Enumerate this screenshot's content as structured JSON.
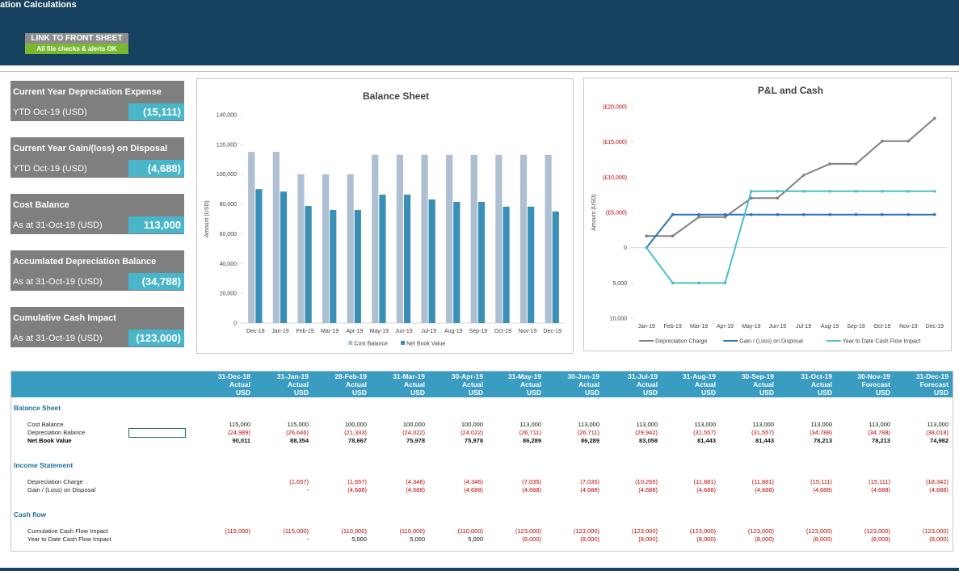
{
  "header": {
    "title": "ation Calculations",
    "button": "LINK TO FRONT SHEET",
    "status": "All file checks & alerts OK"
  },
  "cards": [
    {
      "title": "Current Year Depreciation Expense",
      "label": "YTD Oct-19 (USD)",
      "value": "(15,111)"
    },
    {
      "title": "Current Year Gain/(loss) on Disposal",
      "label": "YTD Oct-19 (USD)",
      "value": "(4,688)"
    },
    {
      "title": "Cost Balance",
      "label": "As at 31-Oct-19 (USD)",
      "value": "113,000"
    },
    {
      "title": "Accumlated Depreciation Balance",
      "label": "As at 31-Oct-19 (USD)",
      "value": "(34,788)"
    },
    {
      "title": "Cumulative Cash Impact",
      "label": "As at 31-Oct-19 (USD)",
      "value": "(123,000)"
    }
  ],
  "chart_data": [
    {
      "type": "bar",
      "title": "Balance Sheet",
      "y_label": "Amount (USD)",
      "categories": [
        "Dec-18",
        "Jan-19",
        "Feb-19",
        "Mar-19",
        "Apr-19",
        "May-19",
        "Jun-19",
        "Jul-19",
        "Aug-19",
        "Sep-19",
        "Oct-19",
        "Nov-19",
        "Dec-19"
      ],
      "series": [
        {
          "name": "Cost Balance",
          "color": "#adbfd1",
          "values": [
            115000,
            115000,
            100000,
            100000,
            100000,
            113000,
            113000,
            113000,
            113000,
            113000,
            113000,
            113000,
            113000
          ]
        },
        {
          "name": "Net Book Value",
          "color": "#3a8fb7",
          "values": [
            90011,
            88354,
            78667,
            75978,
            75978,
            86289,
            86289,
            83058,
            81443,
            81443,
            78213,
            78213,
            74982
          ]
        }
      ],
      "ylim": [
        0,
        140000
      ],
      "yticks": [
        0,
        {
          "value": 20000,
          "label": "20,000"
        },
        {
          "value": 40000,
          "label": "40,000"
        },
        {
          "value": 60000,
          "label": "60,000"
        },
        {
          "value": 80000,
          "label": "80,000"
        },
        {
          "value": 100000,
          "label": "100,000"
        },
        {
          "value": 120000,
          "label": "120,000"
        },
        {
          "value": 140000,
          "label": "140,000"
        }
      ],
      "grid": false,
      "legend": "bottom"
    },
    {
      "type": "line",
      "title": "P&L and Cash",
      "y_label": "Amount (USD)",
      "categories": [
        "Jan-19",
        "Feb-19",
        "Mar-19",
        "Apr-19",
        "May-19",
        "Jun-19",
        "Jul-19",
        "Aug-19",
        "Sep-19",
        "Oct-19",
        "Nov-19",
        "Dec-19"
      ],
      "series": [
        {
          "name": "Depreciation Charge",
          "color": "#808080",
          "values": [
            -1657,
            -1657,
            -4346,
            -4346,
            -7035,
            -7035,
            -10265,
            -11881,
            -11881,
            -15111,
            -15111,
            -18342
          ]
        },
        {
          "name": "Gain / (Loss) on Disposal",
          "color": "#2e75b6",
          "values": [
            0,
            -4688,
            -4688,
            -4688,
            -4688,
            -4688,
            -4688,
            -4688,
            -4688,
            -4688,
            -4688,
            -4688
          ]
        },
        {
          "name": "Year to Date Cash Flow Impact",
          "color": "#4bbfca",
          "values": [
            0,
            5000,
            5000,
            5000,
            -8000,
            -8000,
            -8000,
            -8000,
            -8000,
            -8000,
            -8000,
            -8000
          ]
        }
      ],
      "ylim": [
        10000,
        -20000
      ],
      "yticks": [
        {
          "value": 10000,
          "label": "10,000"
        },
        {
          "value": 5000,
          "label": "5,000"
        },
        0,
        {
          "value": -5000,
          "label": "(£5,000)"
        },
        {
          "value": -10000,
          "label": "(£10,000)"
        },
        {
          "value": -15000,
          "label": "(£15,000)"
        },
        {
          "value": -20000,
          "label": "(£20,000)"
        }
      ],
      "grid": false,
      "legend": "bottom"
    }
  ],
  "table": {
    "columns": [
      {
        "date": "31-Dec-18",
        "basis": "Actual",
        "currency": "USD"
      },
      {
        "date": "31-Jan-19",
        "basis": "Actual",
        "currency": "USD"
      },
      {
        "date": "28-Feb-19",
        "basis": "Actual",
        "currency": "USD"
      },
      {
        "date": "31-Mar-19",
        "basis": "Actual",
        "currency": "USD"
      },
      {
        "date": "30-Apr-19",
        "basis": "Actual",
        "currency": "USD"
      },
      {
        "date": "31-May-19",
        "basis": "Actual",
        "currency": "USD"
      },
      {
        "date": "30-Jun-19",
        "basis": "Actual",
        "currency": "USD"
      },
      {
        "date": "31-Jul-19",
        "basis": "Actual",
        "currency": "USD"
      },
      {
        "date": "31-Aug-19",
        "basis": "Actual",
        "currency": "USD"
      },
      {
        "date": "30-Sep-19",
        "basis": "Actual",
        "currency": "USD"
      },
      {
        "date": "31-Oct-19",
        "basis": "Actual",
        "currency": "USD"
      },
      {
        "date": "30-Nov-19",
        "basis": "Forecast",
        "currency": "USD"
      },
      {
        "date": "31-Dec-19",
        "basis": "Forecast",
        "currency": "USD"
      }
    ],
    "sections": [
      {
        "title": "Balance Sheet",
        "rows": [
          {
            "label": "Cost Balance",
            "values": [
              "115,000",
              "115,000",
              "100,000",
              "100,000",
              "100,000",
              "113,000",
              "113,000",
              "113,000",
              "113,000",
              "113,000",
              "113,000",
              "113,000",
              "113,000"
            ]
          },
          {
            "label": "Depreciation Balance",
            "values": [
              "(24,989)",
              "(26,646)",
              "(21,333)",
              "(24,022)",
              "(24,022)",
              "(26,711)",
              "(26,711)",
              "(29,942)",
              "(31,557)",
              "(31,557)",
              "(34,788)",
              "(34,788)",
              "(38,018)"
            ]
          },
          {
            "label": "Net Book Value",
            "bold": true,
            "values": [
              "90,011",
              "88,354",
              "78,667",
              "75,978",
              "75,978",
              "86,289",
              "86,289",
              "83,058",
              "81,443",
              "81,443",
              "78,213",
              "78,213",
              "74,982"
            ]
          }
        ]
      },
      {
        "title": "Income Statement",
        "rows": [
          {
            "label": "Depreciation Charge",
            "values": [
              null,
              "(1,657)",
              "(1,657)",
              "(4,346)",
              "(4,346)",
              "(7,035)",
              "(7,035)",
              "(10,265)",
              "(11,881)",
              "(11,881)",
              "(15,111)",
              "(15,111)",
              "(18,342)"
            ]
          },
          {
            "label": "Gain / (Loss) on Disposal",
            "values": [
              null,
              "-",
              "(4,688)",
              "(4,688)",
              "(4,688)",
              "(4,688)",
              "(4,688)",
              "(4,688)",
              "(4,688)",
              "(4,688)",
              "(4,688)",
              "(4,688)",
              "(4,688)"
            ]
          }
        ]
      },
      {
        "title": "Cash flow",
        "rows": [
          {
            "label": "Cumulative Cash Flow Impact",
            "values": [
              "(115,000)",
              "(115,000)",
              "(110,000)",
              "(110,000)",
              "(110,000)",
              "(123,000)",
              "(123,000)",
              "(123,000)",
              "(123,000)",
              "(123,000)",
              "(123,000)",
              "(123,000)",
              "(123,000)"
            ]
          },
          {
            "label": "Year to Date Cash Flow Impact",
            "values": [
              null,
              "-",
              "5,000",
              "5,000",
              "5,000",
              "(8,000)",
              "(8,000)",
              "(8,000)",
              "(8,000)",
              "(8,000)",
              "(8,000)",
              "(8,000)",
              "(8,000)"
            ]
          }
        ]
      }
    ]
  }
}
